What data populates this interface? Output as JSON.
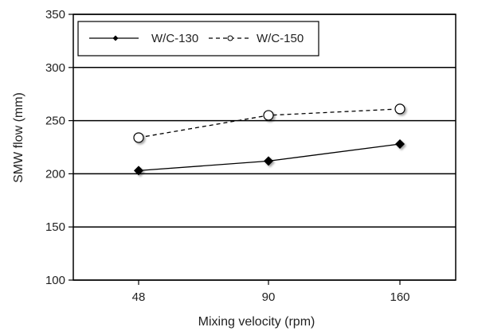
{
  "chart_data": {
    "type": "line",
    "categories": [
      "48",
      "90",
      "160"
    ],
    "xlabel": "Mixing velocity (rpm)",
    "ylabel": "SMW flow (mm)",
    "ylim": [
      100,
      350
    ],
    "yticks": [
      100,
      150,
      200,
      250,
      300,
      350
    ],
    "grid": "horizontal",
    "legend_position": "top-left",
    "series": [
      {
        "name": "W/C-130",
        "values": [
          203,
          212,
          228
        ],
        "color": "#000000",
        "line": "solid",
        "marker": "filled-diamond"
      },
      {
        "name": "W/C-150",
        "values": [
          234,
          255,
          261
        ],
        "color": "#000000",
        "line": "dashed",
        "marker": "open-circle"
      }
    ]
  }
}
